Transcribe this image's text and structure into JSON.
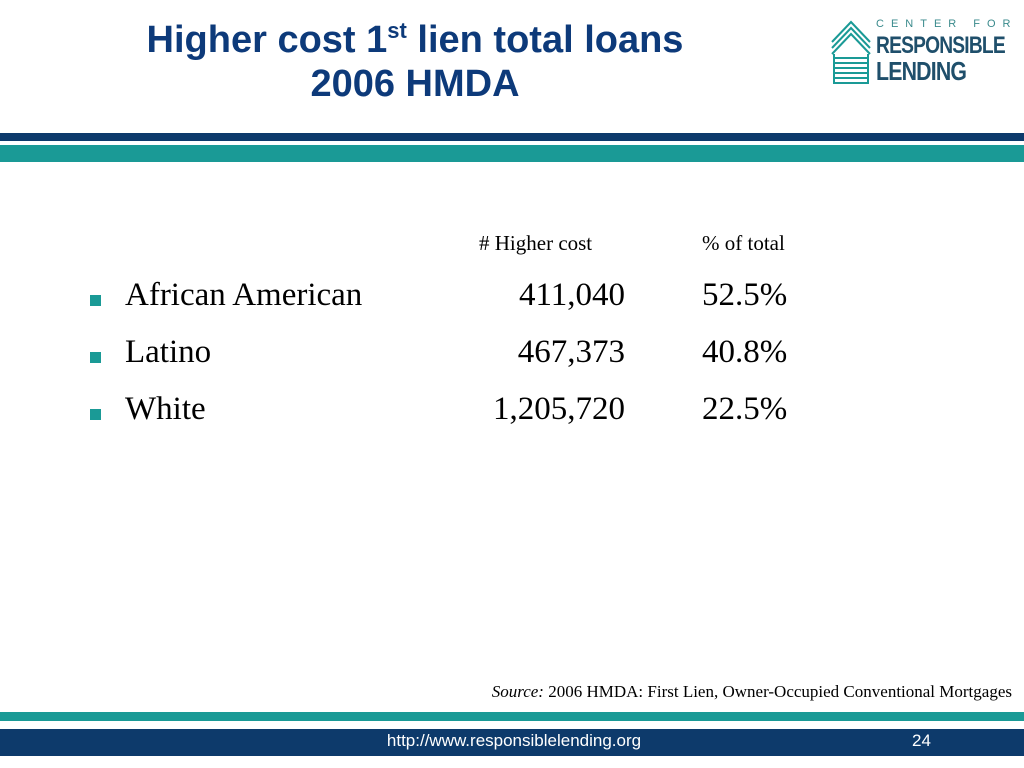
{
  "title": {
    "line1_before": "Higher cost 1",
    "line1_sup": "st",
    "line1_after": " lien total loans",
    "line2": "2006 HMDA"
  },
  "logo": {
    "line1": "CENTER FOR",
    "line2": "RESPONSIBLE",
    "line3": "LENDING",
    "color_teal": "#1a9a96",
    "color_navy": "#1f4f6b"
  },
  "table": {
    "headers": {
      "count": "# Higher cost",
      "percent": "% of total"
    },
    "rows": [
      {
        "label": "African American",
        "count": "411,040",
        "percent": "52.5%"
      },
      {
        "label": "Latino",
        "count": "467,373",
        "percent": "40.8%"
      },
      {
        "label": "White",
        "count": "1,205,720",
        "percent": "22.5%"
      }
    ]
  },
  "source": {
    "label": "Source:",
    "text": " 2006 HMDA: First Lien, Owner-Occupied Conventional Mortgages"
  },
  "footer": {
    "url": "http://www.responsiblelending.org",
    "page_number": "24"
  },
  "colors": {
    "title": "#0d3a7a",
    "navy_bar": "#0d3a6b",
    "teal_bar": "#1a9a96",
    "bullet": "#1a9a96"
  }
}
